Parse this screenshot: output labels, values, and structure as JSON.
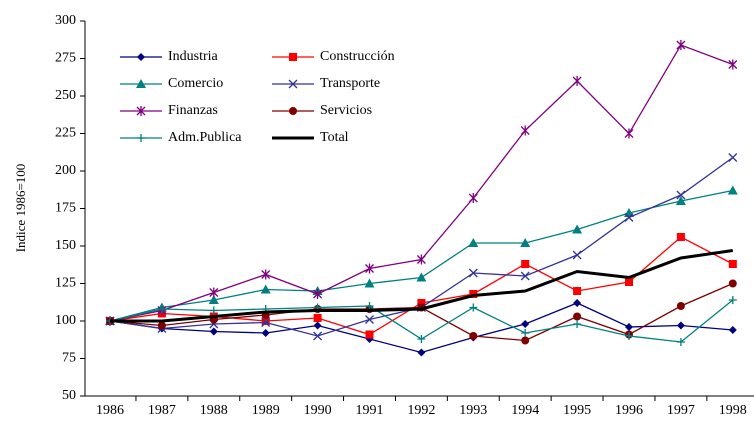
{
  "chart_data": {
    "type": "line",
    "ylabel": "Indice 1986=100",
    "categories": [
      "1986",
      "1987",
      "1988",
      "1989",
      "1990",
      "1991",
      "1992",
      "1993",
      "1994",
      "1995",
      "1996",
      "1997",
      "1998"
    ],
    "ylim": [
      50,
      300
    ],
    "yticks": [
      50,
      75,
      100,
      125,
      150,
      175,
      200,
      225,
      250,
      275,
      300
    ],
    "series": [
      {
        "name": "Industria",
        "color": "#000080",
        "marker": "diamond",
        "values": [
          100,
          95,
          93,
          92,
          97,
          88,
          79,
          89,
          98,
          112,
          96,
          97,
          94
        ]
      },
      {
        "name": "Construcción",
        "color": "#ff0000",
        "marker": "square",
        "values": [
          100,
          105,
          103,
          100,
          102,
          91,
          112,
          118,
          138,
          120,
          126,
          156,
          138
        ]
      },
      {
        "name": "Comercio",
        "color": "#008080",
        "marker": "triangle",
        "values": [
          100,
          109,
          114,
          121,
          120,
          125,
          129,
          152,
          152,
          161,
          172,
          180,
          187
        ]
      },
      {
        "name": "Transporte",
        "color": "#333399",
        "marker": "x",
        "values": [
          100,
          95,
          98,
          99,
          90,
          101,
          109,
          132,
          130,
          144,
          169,
          184,
          209
        ]
      },
      {
        "name": "Finanzas",
        "color": "#800080",
        "marker": "star",
        "values": [
          100,
          107,
          119,
          131,
          118,
          135,
          141,
          182,
          227,
          260,
          225,
          284,
          271
        ]
      },
      {
        "name": "Servicios",
        "color": "#800000",
        "marker": "circle",
        "values": [
          100,
          97,
          101,
          104,
          108,
          108,
          109,
          90,
          87,
          103,
          91,
          110,
          125
        ]
      },
      {
        "name": "Adm.Publica",
        "color": "#008080",
        "marker": "plus",
        "values": [
          100,
          108,
          107,
          108,
          109,
          110,
          88,
          109,
          92,
          98,
          90,
          86,
          114
        ]
      },
      {
        "name": "Total",
        "color": "#000000",
        "marker": "none",
        "width": 3,
        "values": [
          100,
          100,
          103,
          106,
          107,
          107,
          108,
          117,
          120,
          133,
          129,
          142,
          147
        ]
      }
    ]
  }
}
